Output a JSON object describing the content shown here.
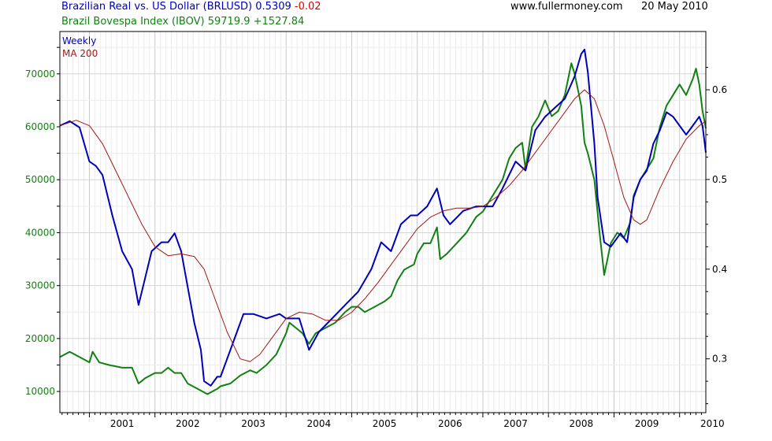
{
  "header": {
    "series1_title": "Brazilian Real vs. US Dollar (BRLUSD)",
    "series1_value": "0.5309",
    "series1_change": "-0.02",
    "series2_title": "Brazil Bovespa Index (IBOV)",
    "series2_value": "59719.9",
    "series2_change": "+1527.84",
    "website": "www.fullermoney.com",
    "date": "20 May 2010"
  },
  "legend": {
    "weekly": "Weekly",
    "ma": "MA 200"
  },
  "colors": {
    "brl": "#0000bb",
    "ibov": "#138013",
    "ma": "#a01818",
    "change_neg": "#dd0000",
    "grid": "#dcdcdc"
  },
  "chart_data": {
    "type": "line",
    "x_axis": {
      "ticks": [
        "2001",
        "2002",
        "2003",
        "2004",
        "2005",
        "2006",
        "2007",
        "2008",
        "2009",
        "2010"
      ],
      "range": [
        2000.55,
        2010.4
      ]
    },
    "y_left": {
      "label": "Brazil Bovespa Index (IBOV)",
      "ticks": [
        "10000",
        "20000",
        "30000",
        "40000",
        "50000",
        "60000",
        "70000"
      ],
      "range": [
        6000,
        78000
      ]
    },
    "y_right": {
      "label": "Brazilian Real vs. US Dollar (BRLUSD)",
      "ticks": [
        "0.3",
        "0.4",
        "0.5",
        "0.6"
      ],
      "range": [
        0.24,
        0.665
      ]
    },
    "grid": true,
    "series": [
      {
        "name": "Brazilian Real vs. US Dollar (BRLUSD)",
        "axis": "right",
        "points": [
          [
            2000.55,
            0.56
          ],
          [
            2000.7,
            0.565
          ],
          [
            2000.85,
            0.558
          ],
          [
            2001.0,
            0.52
          ],
          [
            2001.1,
            0.515
          ],
          [
            2001.2,
            0.505
          ],
          [
            2001.35,
            0.46
          ],
          [
            2001.5,
            0.42
          ],
          [
            2001.65,
            0.4
          ],
          [
            2001.75,
            0.36
          ],
          [
            2001.85,
            0.39
          ],
          [
            2001.95,
            0.42
          ],
          [
            2002.1,
            0.43
          ],
          [
            2002.2,
            0.43
          ],
          [
            2002.3,
            0.44
          ],
          [
            2002.4,
            0.42
          ],
          [
            2002.5,
            0.38
          ],
          [
            2002.6,
            0.34
          ],
          [
            2002.7,
            0.31
          ],
          [
            2002.75,
            0.275
          ],
          [
            2002.85,
            0.27
          ],
          [
            2002.95,
            0.28
          ],
          [
            2003.0,
            0.28
          ],
          [
            2003.1,
            0.3
          ],
          [
            2003.25,
            0.33
          ],
          [
            2003.35,
            0.35
          ],
          [
            2003.5,
            0.35
          ],
          [
            2003.7,
            0.345
          ],
          [
            2003.9,
            0.35
          ],
          [
            2004.0,
            0.345
          ],
          [
            2004.2,
            0.345
          ],
          [
            2004.35,
            0.31
          ],
          [
            2004.5,
            0.33
          ],
          [
            2004.7,
            0.345
          ],
          [
            2004.9,
            0.36
          ],
          [
            2005.1,
            0.375
          ],
          [
            2005.3,
            0.4
          ],
          [
            2005.45,
            0.43
          ],
          [
            2005.6,
            0.42
          ],
          [
            2005.75,
            0.45
          ],
          [
            2005.9,
            0.46
          ],
          [
            2006.0,
            0.46
          ],
          [
            2006.15,
            0.47
          ],
          [
            2006.3,
            0.49
          ],
          [
            2006.4,
            0.46
          ],
          [
            2006.5,
            0.45
          ],
          [
            2006.7,
            0.465
          ],
          [
            2006.9,
            0.47
          ],
          [
            2007.0,
            0.47
          ],
          [
            2007.15,
            0.47
          ],
          [
            2007.3,
            0.49
          ],
          [
            2007.5,
            0.52
          ],
          [
            2007.65,
            0.51
          ],
          [
            2007.8,
            0.555
          ],
          [
            2007.95,
            0.57
          ],
          [
            2008.1,
            0.58
          ],
          [
            2008.25,
            0.59
          ],
          [
            2008.4,
            0.615
          ],
          [
            2008.5,
            0.64
          ],
          [
            2008.55,
            0.645
          ],
          [
            2008.6,
            0.62
          ],
          [
            2008.7,
            0.54
          ],
          [
            2008.75,
            0.48
          ],
          [
            2008.85,
            0.43
          ],
          [
            2008.95,
            0.425
          ],
          [
            2009.1,
            0.44
          ],
          [
            2009.2,
            0.43
          ],
          [
            2009.3,
            0.48
          ],
          [
            2009.4,
            0.5
          ],
          [
            2009.5,
            0.51
          ],
          [
            2009.6,
            0.54
          ],
          [
            2009.7,
            0.555
          ],
          [
            2009.8,
            0.575
          ],
          [
            2009.9,
            0.57
          ],
          [
            2010.0,
            0.56
          ],
          [
            2010.1,
            0.55
          ],
          [
            2010.2,
            0.56
          ],
          [
            2010.3,
            0.57
          ],
          [
            2010.35,
            0.56
          ],
          [
            2010.4,
            0.53
          ]
        ]
      },
      {
        "name": "Brazil Bovespa Index (IBOV)",
        "axis": "left",
        "points": [
          [
            2000.55,
            16500
          ],
          [
            2000.7,
            17500
          ],
          [
            2000.85,
            16500
          ],
          [
            2001.0,
            15500
          ],
          [
            2001.05,
            17500
          ],
          [
            2001.15,
            15500
          ],
          [
            2001.3,
            15000
          ],
          [
            2001.5,
            14500
          ],
          [
            2001.65,
            14500
          ],
          [
            2001.75,
            11500
          ],
          [
            2001.85,
            12500
          ],
          [
            2002.0,
            13500
          ],
          [
            2002.1,
            13500
          ],
          [
            2002.2,
            14500
          ],
          [
            2002.3,
            13500
          ],
          [
            2002.4,
            13500
          ],
          [
            2002.5,
            11500
          ],
          [
            2002.65,
            10500
          ],
          [
            2002.8,
            9500
          ],
          [
            2002.95,
            10500
          ],
          [
            2003.0,
            11000
          ],
          [
            2003.15,
            11500
          ],
          [
            2003.3,
            13000
          ],
          [
            2003.45,
            14000
          ],
          [
            2003.55,
            13500
          ],
          [
            2003.7,
            15000
          ],
          [
            2003.85,
            17000
          ],
          [
            2004.0,
            21000
          ],
          [
            2004.05,
            23000
          ],
          [
            2004.15,
            22000
          ],
          [
            2004.25,
            21000
          ],
          [
            2004.35,
            19000
          ],
          [
            2004.45,
            21000
          ],
          [
            2004.6,
            22000
          ],
          [
            2004.75,
            23000
          ],
          [
            2004.9,
            25000
          ],
          [
            2005.0,
            26000
          ],
          [
            2005.1,
            26000
          ],
          [
            2005.2,
            25000
          ],
          [
            2005.35,
            26000
          ],
          [
            2005.5,
            27000
          ],
          [
            2005.6,
            28000
          ],
          [
            2005.7,
            31000
          ],
          [
            2005.8,
            33000
          ],
          [
            2005.95,
            34000
          ],
          [
            2006.0,
            36000
          ],
          [
            2006.1,
            38000
          ],
          [
            2006.2,
            38000
          ],
          [
            2006.3,
            41000
          ],
          [
            2006.35,
            35000
          ],
          [
            2006.45,
            36000
          ],
          [
            2006.6,
            38000
          ],
          [
            2006.75,
            40000
          ],
          [
            2006.9,
            43000
          ],
          [
            2007.0,
            44000
          ],
          [
            2007.1,
            46000
          ],
          [
            2007.2,
            48000
          ],
          [
            2007.3,
            50000
          ],
          [
            2007.4,
            54000
          ],
          [
            2007.5,
            56000
          ],
          [
            2007.6,
            57000
          ],
          [
            2007.65,
            52000
          ],
          [
            2007.75,
            60000
          ],
          [
            2007.85,
            62000
          ],
          [
            2007.95,
            65000
          ],
          [
            2008.05,
            62000
          ],
          [
            2008.15,
            63000
          ],
          [
            2008.25,
            66000
          ],
          [
            2008.35,
            72000
          ],
          [
            2008.4,
            70000
          ],
          [
            2008.5,
            64000
          ],
          [
            2008.55,
            57000
          ],
          [
            2008.6,
            55000
          ],
          [
            2008.7,
            50000
          ],
          [
            2008.78,
            40000
          ],
          [
            2008.85,
            32000
          ],
          [
            2008.95,
            38000
          ],
          [
            2009.05,
            40000
          ],
          [
            2009.15,
            39000
          ],
          [
            2009.25,
            42000
          ],
          [
            2009.3,
            47000
          ],
          [
            2009.4,
            50000
          ],
          [
            2009.5,
            52000
          ],
          [
            2009.6,
            54000
          ],
          [
            2009.7,
            60000
          ],
          [
            2009.8,
            64000
          ],
          [
            2009.9,
            66000
          ],
          [
            2010.0,
            68000
          ],
          [
            2010.1,
            66000
          ],
          [
            2010.2,
            69000
          ],
          [
            2010.25,
            71000
          ],
          [
            2010.3,
            68000
          ],
          [
            2010.35,
            63000
          ],
          [
            2010.4,
            59720
          ]
        ]
      },
      {
        "name": "MA 200",
        "axis": "right",
        "points": [
          [
            2000.55,
            0.56
          ],
          [
            2000.8,
            0.566
          ],
          [
            2001.0,
            0.56
          ],
          [
            2001.2,
            0.54
          ],
          [
            2001.4,
            0.51
          ],
          [
            2001.6,
            0.48
          ],
          [
            2001.8,
            0.45
          ],
          [
            2002.0,
            0.425
          ],
          [
            2002.2,
            0.415
          ],
          [
            2002.4,
            0.417
          ],
          [
            2002.6,
            0.414
          ],
          [
            2002.75,
            0.4
          ],
          [
            2002.9,
            0.37
          ],
          [
            2003.1,
            0.33
          ],
          [
            2003.3,
            0.3
          ],
          [
            2003.45,
            0.297
          ],
          [
            2003.6,
            0.305
          ],
          [
            2003.8,
            0.325
          ],
          [
            2004.0,
            0.345
          ],
          [
            2004.2,
            0.352
          ],
          [
            2004.4,
            0.35
          ],
          [
            2004.6,
            0.343
          ],
          [
            2004.8,
            0.343
          ],
          [
            2005.0,
            0.352
          ],
          [
            2005.2,
            0.367
          ],
          [
            2005.4,
            0.385
          ],
          [
            2005.6,
            0.405
          ],
          [
            2005.8,
            0.425
          ],
          [
            2006.0,
            0.445
          ],
          [
            2006.2,
            0.458
          ],
          [
            2006.4,
            0.465
          ],
          [
            2006.6,
            0.468
          ],
          [
            2006.8,
            0.468
          ],
          [
            2007.0,
            0.47
          ],
          [
            2007.2,
            0.48
          ],
          [
            2007.4,
            0.493
          ],
          [
            2007.6,
            0.51
          ],
          [
            2007.8,
            0.53
          ],
          [
            2008.0,
            0.55
          ],
          [
            2008.2,
            0.57
          ],
          [
            2008.4,
            0.59
          ],
          [
            2008.55,
            0.6
          ],
          [
            2008.7,
            0.59
          ],
          [
            2008.85,
            0.56
          ],
          [
            2009.0,
            0.52
          ],
          [
            2009.15,
            0.48
          ],
          [
            2009.3,
            0.455
          ],
          [
            2009.4,
            0.45
          ],
          [
            2009.5,
            0.455
          ],
          [
            2009.7,
            0.49
          ],
          [
            2009.9,
            0.52
          ],
          [
            2010.1,
            0.545
          ],
          [
            2010.3,
            0.56
          ],
          [
            2010.4,
            0.565
          ]
        ]
      }
    ]
  }
}
